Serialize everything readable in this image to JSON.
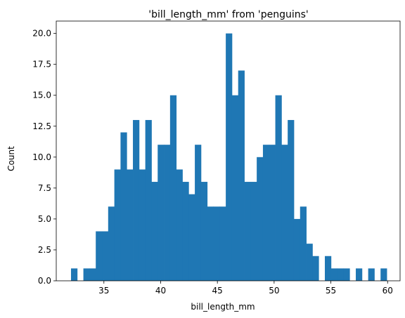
{
  "chart_data": {
    "type": "bar",
    "title": "'bill_length_mm' from 'penguins'",
    "xlabel": "bill_length_mm",
    "ylabel": "Count",
    "bar_color": "#1f77b4",
    "xlim": [
      30.8,
      61.1
    ],
    "ylim": [
      0,
      21
    ],
    "bin_width": 0.5456,
    "bin_start": 32.1,
    "x_ticks": [
      35,
      40,
      45,
      50,
      55,
      60
    ],
    "y_ticks": [
      0.0,
      2.5,
      5.0,
      7.5,
      10.0,
      12.5,
      15.0,
      17.5,
      20.0
    ],
    "x_tick_labels": [
      "35",
      "40",
      "45",
      "50",
      "55",
      "60"
    ],
    "y_tick_labels": [
      "0.0",
      "2.5",
      "5.0",
      "7.5",
      "10.0",
      "12.5",
      "15.0",
      "17.5",
      "20.0"
    ],
    "values": [
      1,
      0,
      1,
      1,
      4,
      4,
      6,
      9,
      12,
      9,
      13,
      9,
      13,
      8,
      11,
      11,
      15,
      9,
      8,
      7,
      11,
      8,
      6,
      6,
      6,
      20,
      15,
      17,
      8,
      8,
      10,
      11,
      11,
      15,
      11,
      13,
      5,
      6,
      3,
      2,
      0,
      2,
      1,
      1,
      1,
      0,
      1,
      0,
      1,
      0,
      1
    ],
    "grid": false,
    "legend": "none"
  }
}
